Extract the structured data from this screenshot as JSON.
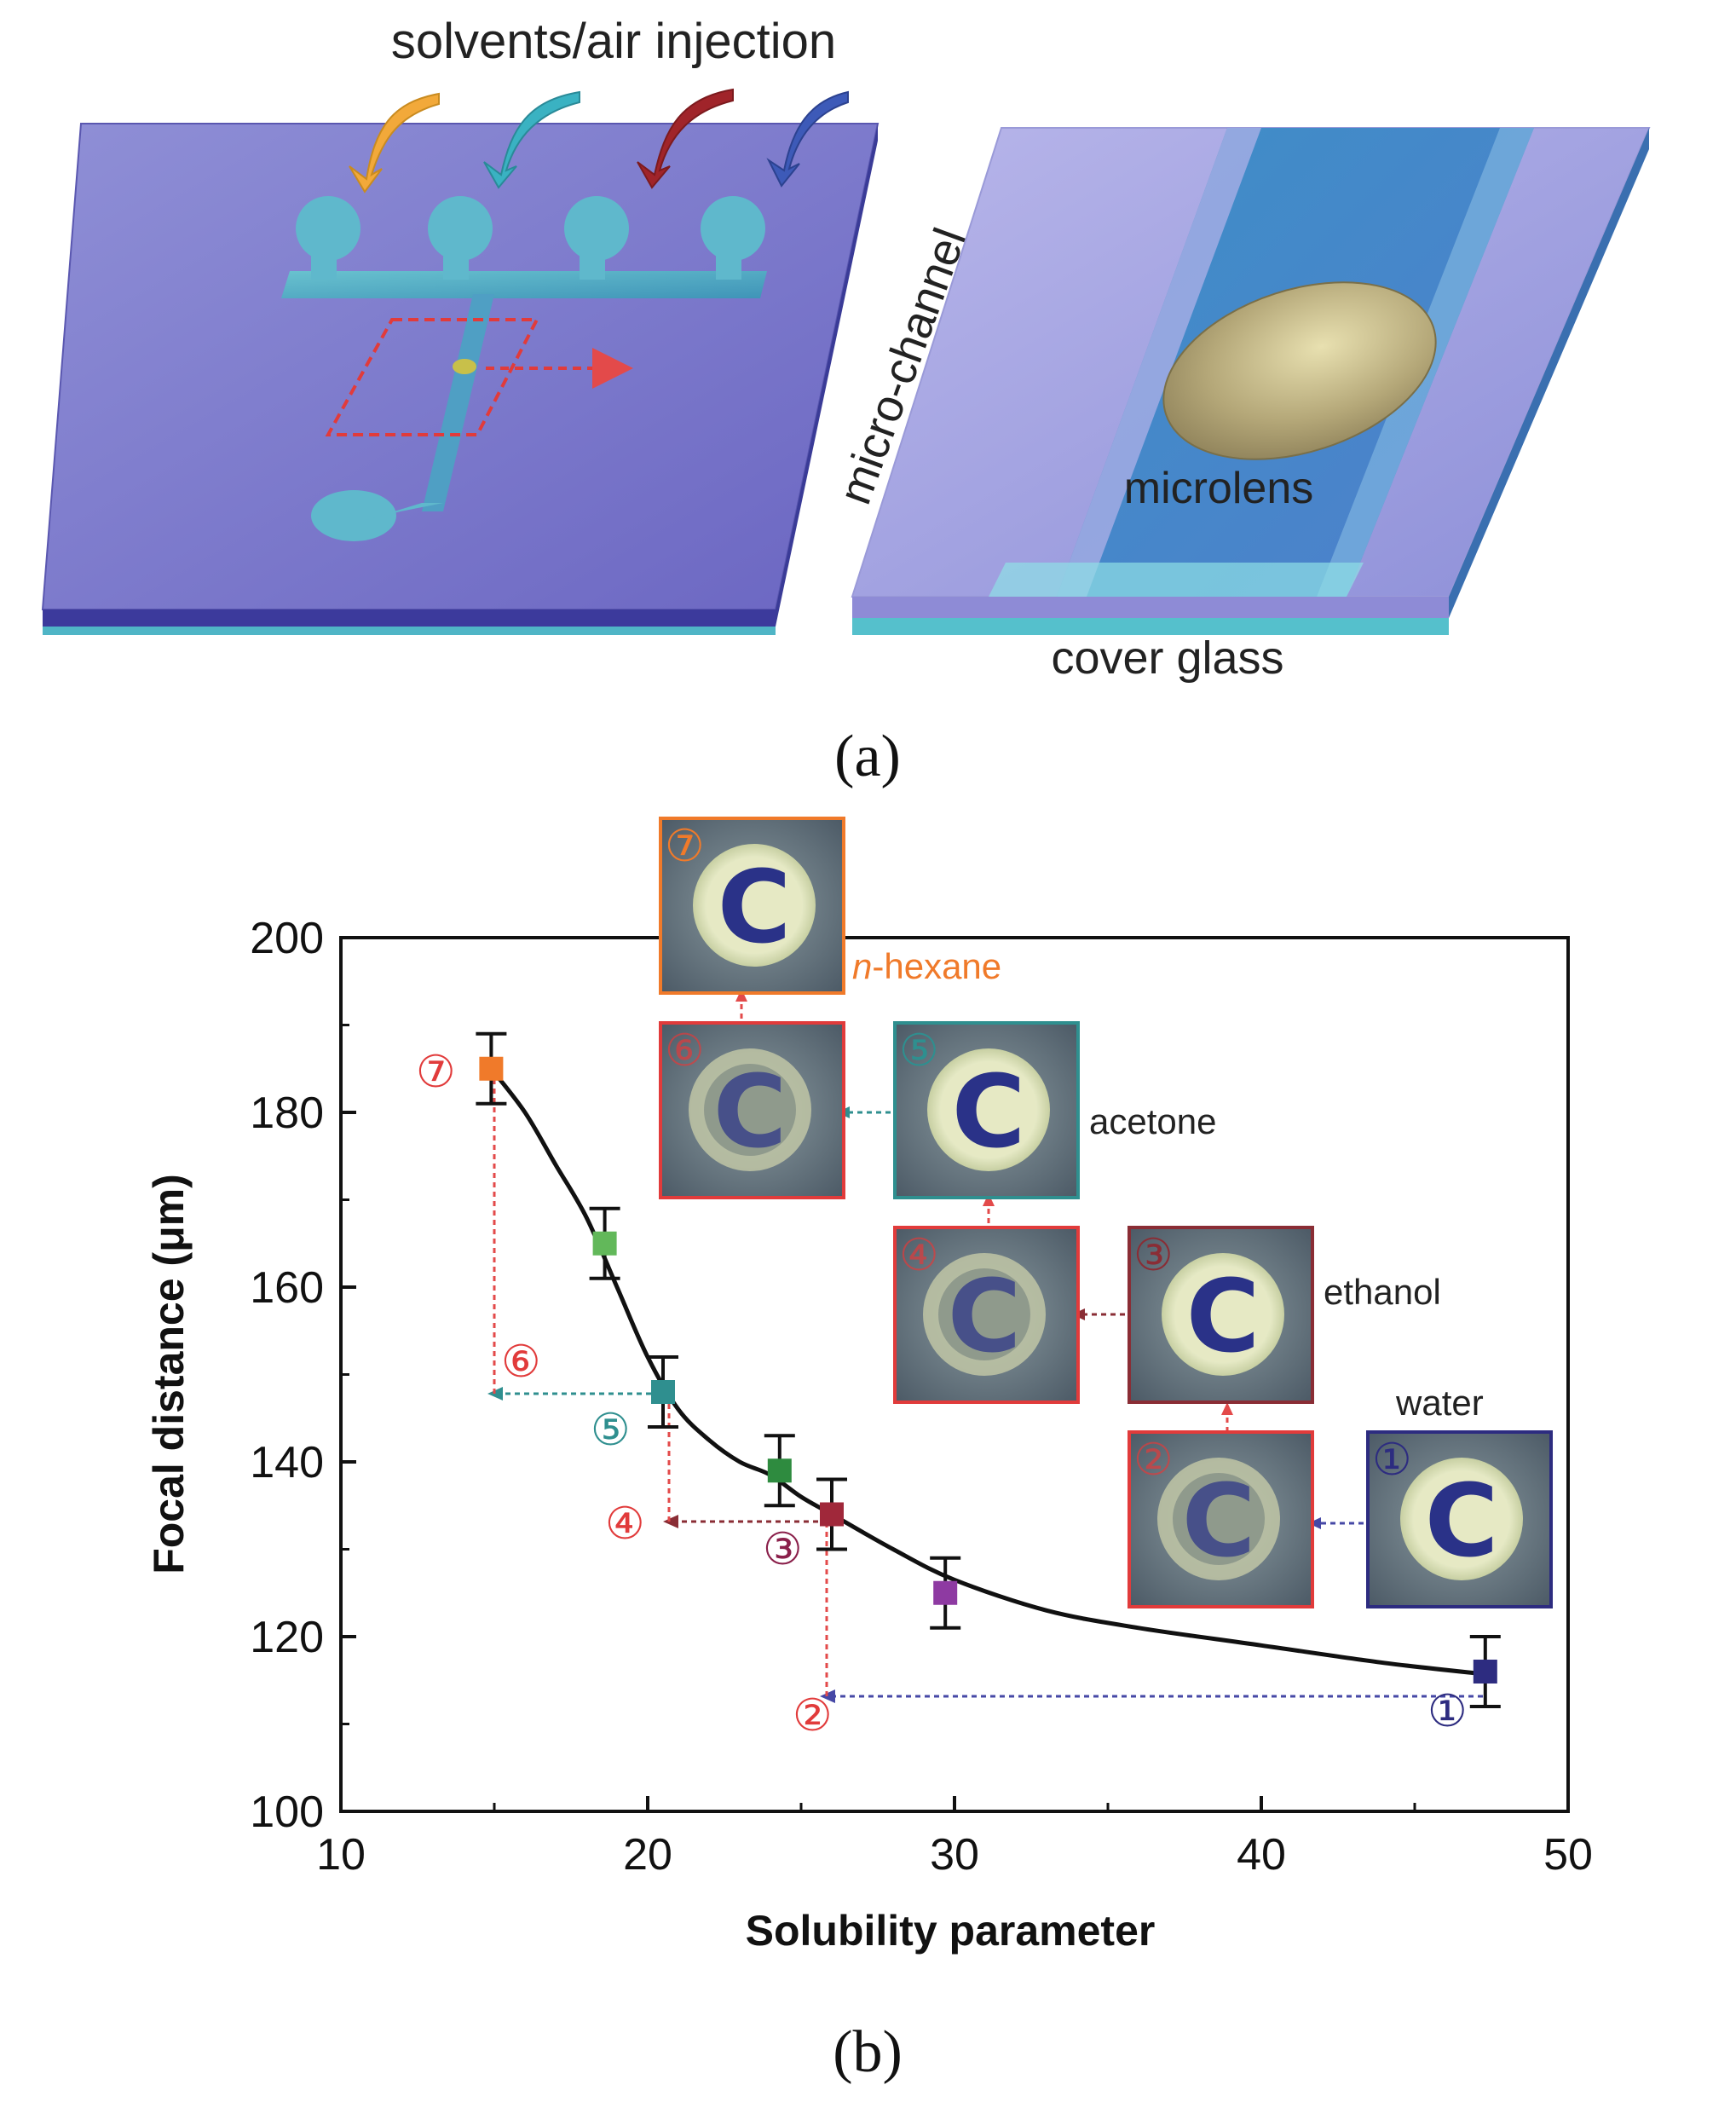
{
  "panel_a": {
    "label": "(a)",
    "injection_label": "solvents/air injection",
    "channel_label": "micro-channel",
    "lens_label": "microlens",
    "glass_label": "cover glass"
  },
  "panel_b": {
    "label": "(b)",
    "solvent_labels": {
      "hexane_prefix": "n",
      "hexane_rest": "-hexane",
      "acetone": "acetone",
      "ethanol": "ethanol",
      "water": "water"
    },
    "step_markers": [
      "①",
      "②",
      "③",
      "④",
      "⑤",
      "⑥",
      "⑦"
    ],
    "tile_letter": "C"
  },
  "chart_data": {
    "type": "scatter",
    "xlabel": "Solubility parameter",
    "ylabel": "Focal distance (μm)",
    "xlim": [
      10,
      50
    ],
    "ylim": [
      100,
      200
    ],
    "x_ticks": [
      10,
      20,
      30,
      40,
      50
    ],
    "y_ticks": [
      100,
      120,
      140,
      160,
      180,
      200
    ],
    "grid": false,
    "points": [
      {
        "x": 14.9,
        "y": 185,
        "err": 4,
        "color": "#f07a2a"
      },
      {
        "x": 18.6,
        "y": 165,
        "err": 4,
        "color": "#62b85a"
      },
      {
        "x": 20.5,
        "y": 148,
        "err": 4,
        "color": "#2f8f8f"
      },
      {
        "x": 24.3,
        "y": 139,
        "err": 4,
        "color": "#2e8b3f"
      },
      {
        "x": 26.0,
        "y": 134,
        "err": 4,
        "color": "#a0283a"
      },
      {
        "x": 29.7,
        "y": 125,
        "err": 4,
        "color": "#8e3aa2"
      },
      {
        "x": 47.3,
        "y": 116,
        "err": 4,
        "color": "#2d2c80"
      }
    ],
    "fit_curve": [
      [
        14.9,
        185
      ],
      [
        16,
        180
      ],
      [
        17,
        174
      ],
      [
        18,
        168
      ],
      [
        19,
        160
      ],
      [
        20,
        152
      ],
      [
        21,
        146
      ],
      [
        22,
        142.5
      ],
      [
        23,
        140
      ],
      [
        24,
        138.5
      ],
      [
        25,
        136
      ],
      [
        26,
        134
      ],
      [
        28,
        130
      ],
      [
        30,
        126.5
      ],
      [
        33,
        123
      ],
      [
        36,
        121
      ],
      [
        40,
        119
      ],
      [
        44,
        117
      ],
      [
        47.3,
        115.7
      ]
    ]
  }
}
